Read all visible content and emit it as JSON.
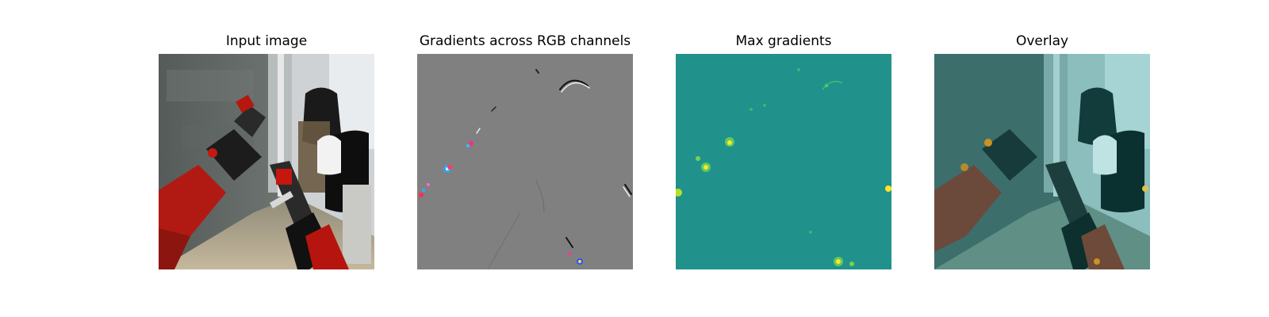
{
  "panels": [
    {
      "title": "Input image"
    },
    {
      "title": "Gradients across RGB channels"
    },
    {
      "title": "Max gradients"
    },
    {
      "title": "Overlay"
    }
  ]
}
